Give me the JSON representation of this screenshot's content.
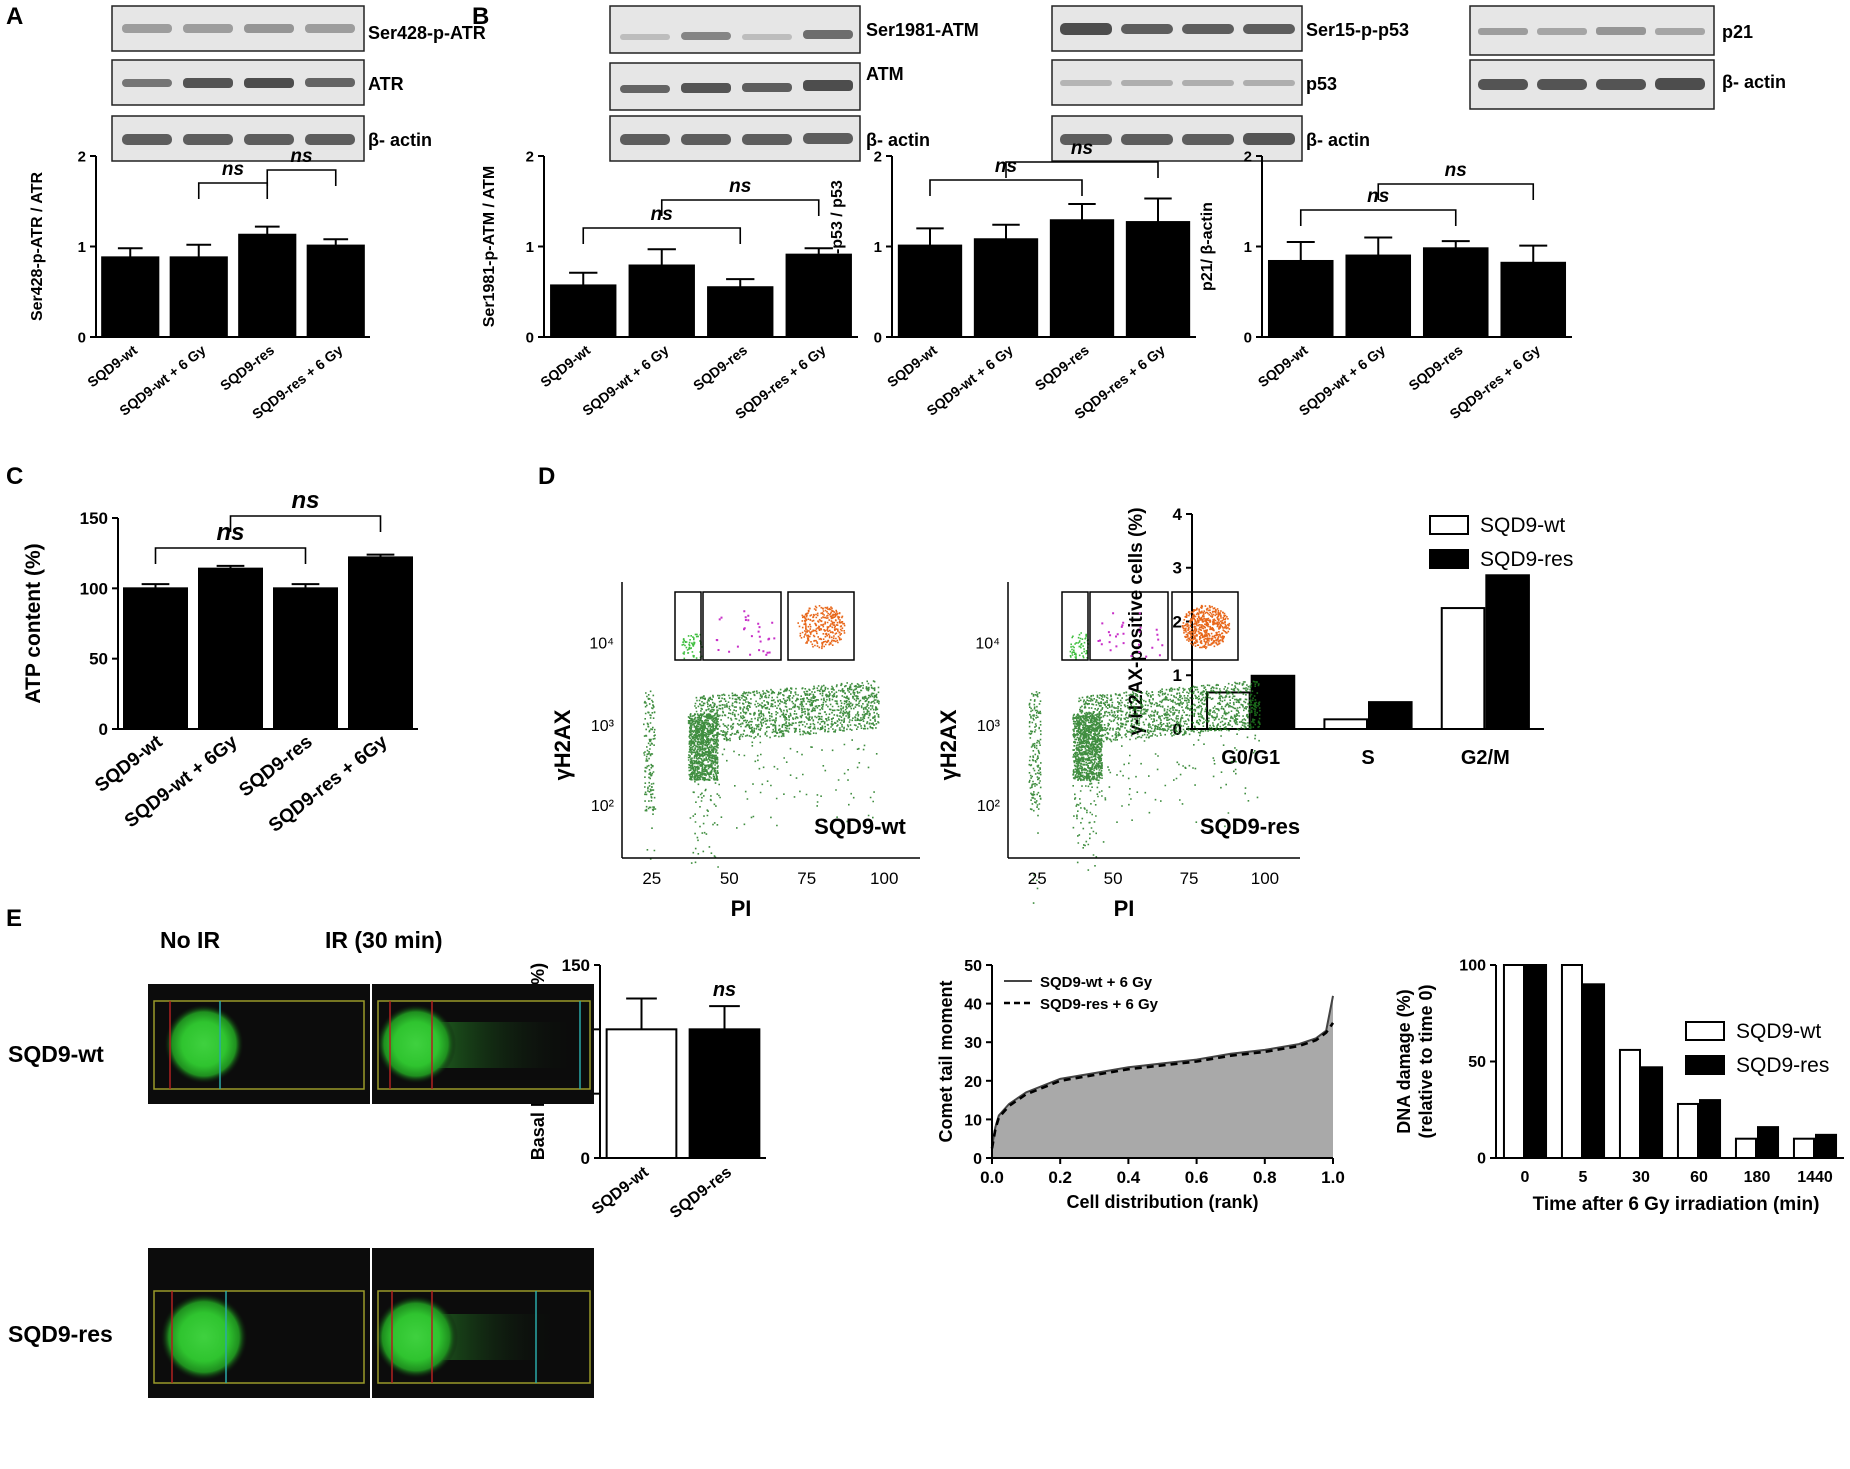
{
  "panel_letters": [
    "A",
    "B",
    "C",
    "D",
    "E"
  ],
  "blots": {
    "A": {
      "labels": [
        "Ser428-p-ATR",
        "ATR",
        "β- actin"
      ]
    },
    "B_atm": {
      "labels": [
        "Ser1981-ATM",
        "ATM",
        "β- actin"
      ]
    },
    "B_p53": {
      "labels": [
        "Ser15-p-p53",
        "p53",
        "β- actin"
      ]
    },
    "B_p21": {
      "labels": [
        "p21",
        "β- actin"
      ]
    }
  },
  "flow": {
    "ylabel": "γH2AX",
    "xlabel": "PI",
    "yticks": [
      "10²",
      "10³",
      "10⁴"
    ],
    "xticks": [
      "25",
      "50",
      "75",
      "100"
    ],
    "samples": [
      "SQD9-wt",
      "SQD9-res"
    ]
  },
  "comet_images": {
    "col_labels": [
      "No IR",
      "IR (30 min)"
    ],
    "row_labels": [
      "SQD9-wt",
      "SQD9-res"
    ]
  },
  "chart_data": [
    {
      "id": "A",
      "type": "bar",
      "categories": [
        "SQD9-wt",
        "SQD9-wt + 6 Gy",
        "SQD9-res",
        "SQD9-res + 6 Gy"
      ],
      "values": [
        0.88,
        0.88,
        1.13,
        1.01
      ],
      "errors": [
        0.1,
        0.14,
        0.09,
        0.07
      ],
      "ylabel": "Ser428-p-ATR / ATR",
      "ylim": [
        0,
        2
      ],
      "yticks": [
        "0",
        "1",
        "2"
      ],
      "significance": [
        "ns",
        "ns"
      ]
    },
    {
      "id": "B1",
      "type": "bar",
      "categories": [
        "SQD9-wt",
        "SQD9-wt + 6 Gy",
        "SQD9-res",
        "SQD9-res + 6 Gy"
      ],
      "values": [
        0.57,
        0.79,
        0.55,
        0.91
      ],
      "errors": [
        0.14,
        0.18,
        0.09,
        0.07
      ],
      "ylabel": "Ser1981-p-ATM / ATM",
      "ylim": [
        0,
        2
      ],
      "yticks": [
        "0",
        "1",
        "2"
      ],
      "significance": [
        "ns",
        "ns"
      ]
    },
    {
      "id": "B2",
      "type": "bar",
      "categories": [
        "SQD9-wt",
        "SQD9-wt + 6 Gy",
        "SQD9-res",
        "SQD9-res + 6 Gy"
      ],
      "values": [
        1.01,
        1.08,
        1.29,
        1.27
      ],
      "errors": [
        0.19,
        0.16,
        0.18,
        0.26
      ],
      "ylabel": "Ser15-p-p53 / p53",
      "ylim": [
        0,
        2
      ],
      "yticks": [
        "0",
        "1",
        "2"
      ],
      "significance": [
        "ns",
        "ns"
      ]
    },
    {
      "id": "B3",
      "type": "bar",
      "categories": [
        "SQD9-wt",
        "SQD9-wt + 6 Gy",
        "SQD9-res",
        "SQD9-res + 6 Gy"
      ],
      "values": [
        0.84,
        0.9,
        0.98,
        0.82
      ],
      "errors": [
        0.21,
        0.2,
        0.08,
        0.19
      ],
      "ylabel": "p21/ β-actin",
      "ylim": [
        0,
        2
      ],
      "yticks": [
        "0",
        "1",
        "2"
      ],
      "significance": [
        "ns",
        "ns"
      ]
    },
    {
      "id": "C",
      "type": "bar",
      "categories": [
        "SQD9-wt",
        "SQD9-wt + 6Gy",
        "SQD9-res",
        "SQD9-res + 6Gy"
      ],
      "values": [
        100,
        114,
        100,
        122
      ],
      "errors": [
        3,
        2,
        3,
        2
      ],
      "ylabel": "ATP content (%)",
      "ylim": [
        0,
        150
      ],
      "yticks": [
        "0",
        "50",
        "100",
        "150"
      ],
      "significance": [
        "ns",
        "ns"
      ]
    },
    {
      "id": "D",
      "type": "bar",
      "categories": [
        "G0/G1",
        "S",
        "G2/M"
      ],
      "series": [
        {
          "name": "SQD9-wt",
          "values": [
            0.68,
            0.18,
            2.25
          ]
        },
        {
          "name": "SQD9-res",
          "values": [
            0.99,
            0.5,
            2.86
          ]
        }
      ],
      "ylabel": "γ-H2AX-positive cells (%)",
      "ylim": [
        0,
        4
      ],
      "yticks": [
        "0",
        "1",
        "2",
        "3",
        "4"
      ],
      "legend": "top-left"
    },
    {
      "id": "E1",
      "type": "bar",
      "categories": [
        "SQD9-wt",
        "SQD9-res"
      ],
      "values": [
        100,
        100
      ],
      "errors": [
        24,
        18
      ],
      "ylabel": "Basal DNA damage (%)",
      "ylim": [
        0,
        150
      ],
      "yticks": [
        "0",
        "50",
        "100",
        "150"
      ],
      "significance": [
        "ns"
      ]
    },
    {
      "id": "E2",
      "type": "area",
      "series": [
        {
          "name": "SQD9-wt + 6 Gy",
          "x": [
            0,
            0.01,
            0.02,
            0.05,
            0.1,
            0.2,
            0.3,
            0.4,
            0.5,
            0.6,
            0.7,
            0.8,
            0.9,
            0.95,
            0.98,
            1.0
          ],
          "y": [
            3,
            8,
            11,
            14,
            17,
            20.5,
            22,
            23.5,
            24.5,
            25.5,
            27,
            28,
            29.5,
            31,
            33,
            42
          ]
        },
        {
          "name": "SQD9-res + 6 Gy",
          "x": [
            0,
            0.01,
            0.02,
            0.05,
            0.1,
            0.2,
            0.3,
            0.4,
            0.5,
            0.6,
            0.7,
            0.8,
            0.9,
            0.95,
            0.98,
            1.0
          ],
          "y": [
            2.5,
            7.5,
            10.5,
            13.5,
            16.5,
            20,
            21.5,
            23,
            24,
            25,
            26.5,
            27.5,
            29,
            30.5,
            32.5,
            35
          ]
        }
      ],
      "xlabel": "Cell distribution (rank)",
      "ylabel": "Comet tail moment",
      "xlim": [
        0,
        1
      ],
      "ylim": [
        0,
        50
      ],
      "xticks": [
        "0.0",
        "0.2",
        "0.4",
        "0.6",
        "0.8",
        "1.0"
      ],
      "yticks": [
        "0",
        "10",
        "20",
        "30",
        "40",
        "50"
      ],
      "legend": "top-left"
    },
    {
      "id": "E3",
      "type": "bar",
      "categories": [
        "0",
        "5",
        "30",
        "60",
        "180",
        "1440"
      ],
      "series": [
        {
          "name": "SQD9-wt",
          "values": [
            100,
            100,
            56,
            28,
            10,
            10
          ]
        },
        {
          "name": "SQD9-res",
          "values": [
            100,
            90,
            47,
            30,
            16,
            12
          ]
        }
      ],
      "xlabel": "Time after 6 Gy irradiation (min)",
      "ylabel": "DNA damage (%)",
      "ylabel2": "(relative to time 0)",
      "ylim": [
        0,
        100
      ],
      "yticks": [
        "0",
        "50",
        "100"
      ],
      "legend": "top-right"
    }
  ]
}
